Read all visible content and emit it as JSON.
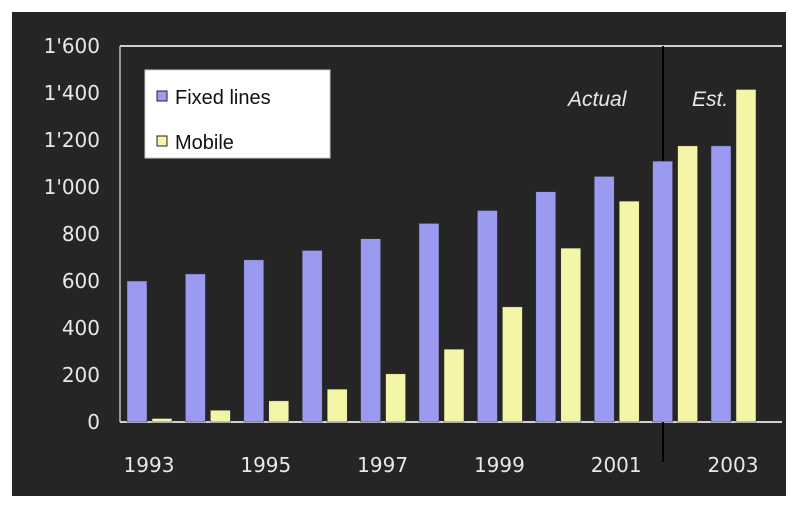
{
  "chart_data": {
    "type": "bar",
    "categories": [
      "1993",
      "1994",
      "1995",
      "1996",
      "1997",
      "1998",
      "1999",
      "2000",
      "2001",
      "2002",
      "2003"
    ],
    "x_tick_labels": [
      "1993",
      "1995",
      "1997",
      "1999",
      "2001",
      "2003"
    ],
    "y_tick_labels": [
      "0",
      "200",
      "400",
      "600",
      "800",
      "1'000",
      "1'200",
      "1'400",
      "1'600"
    ],
    "ylim": [
      0,
      1600
    ],
    "series": [
      {
        "name": "Fixed lines",
        "color": "#9a9af0",
        "values": [
          600,
          630,
          690,
          730,
          780,
          845,
          900,
          980,
          1045,
          1110,
          1175
        ]
      },
      {
        "name": "Mobile",
        "color": "#f5f5a8",
        "values": [
          15,
          50,
          90,
          140,
          205,
          310,
          490,
          740,
          940,
          1175,
          1415
        ]
      }
    ],
    "annotations": {
      "actual": "Actual",
      "estimate": "Est."
    },
    "legend_position": "top-left",
    "background_color": "#252525",
    "title": "",
    "xlabel": "",
    "ylabel": ""
  }
}
